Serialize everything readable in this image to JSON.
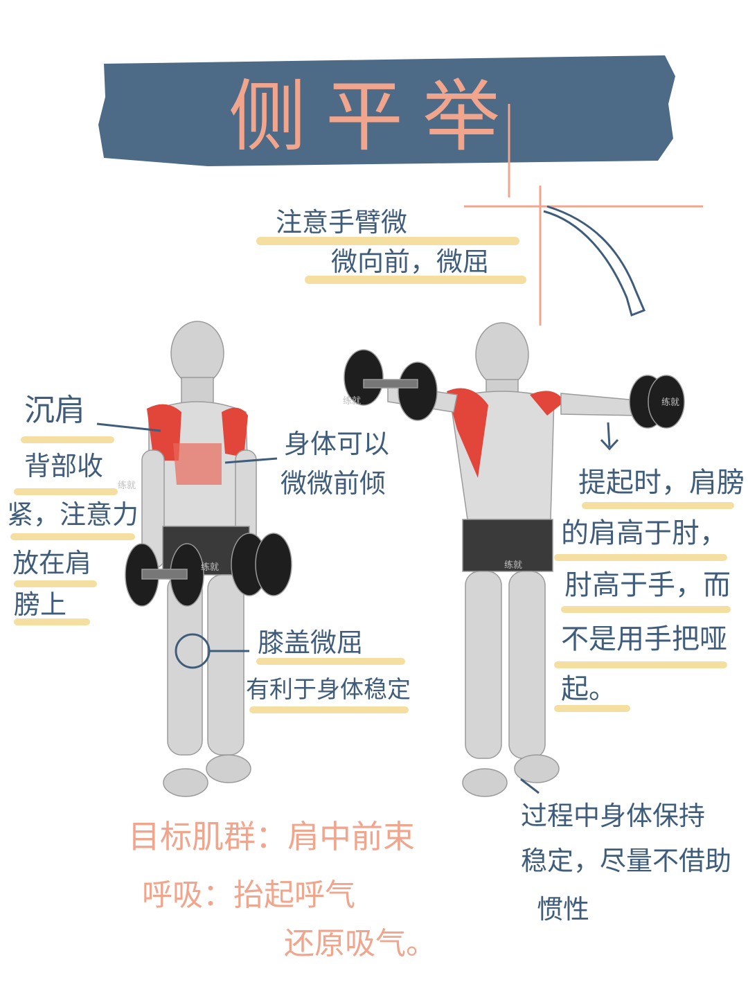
{
  "title": "侧平举",
  "note_top": [
    "注意手臂微",
    "微向前，微屈"
  ],
  "note_left_a": "沉肩",
  "note_left_b": [
    "背部收",
    "紧，注意力",
    "放在肩",
    "膀上"
  ],
  "note_body": [
    "身体可以",
    "微微前倾"
  ],
  "note_knee": [
    "膝盖微屈",
    "有利于身体稳定"
  ],
  "note_right": [
    "提起时，肩膀",
    "的肩高于肘，",
    "肘高于手，而",
    "不是用手把哑",
    "起。"
  ],
  "note_bottom_right": [
    "过程中身体保持",
    "稳定，尽量不借助",
    "惯性"
  ],
  "target": "目标肌群：肩中前束",
  "breath": [
    "呼吸：抬起呼气",
    "还原吸气。"
  ],
  "watermark": "练就",
  "colors": {
    "title_bg": "#4d6b87",
    "title_text": "#f0a58c",
    "ink": "#3f5d7a",
    "highlight": "#f1d78a",
    "muscle": "#e2453a"
  }
}
